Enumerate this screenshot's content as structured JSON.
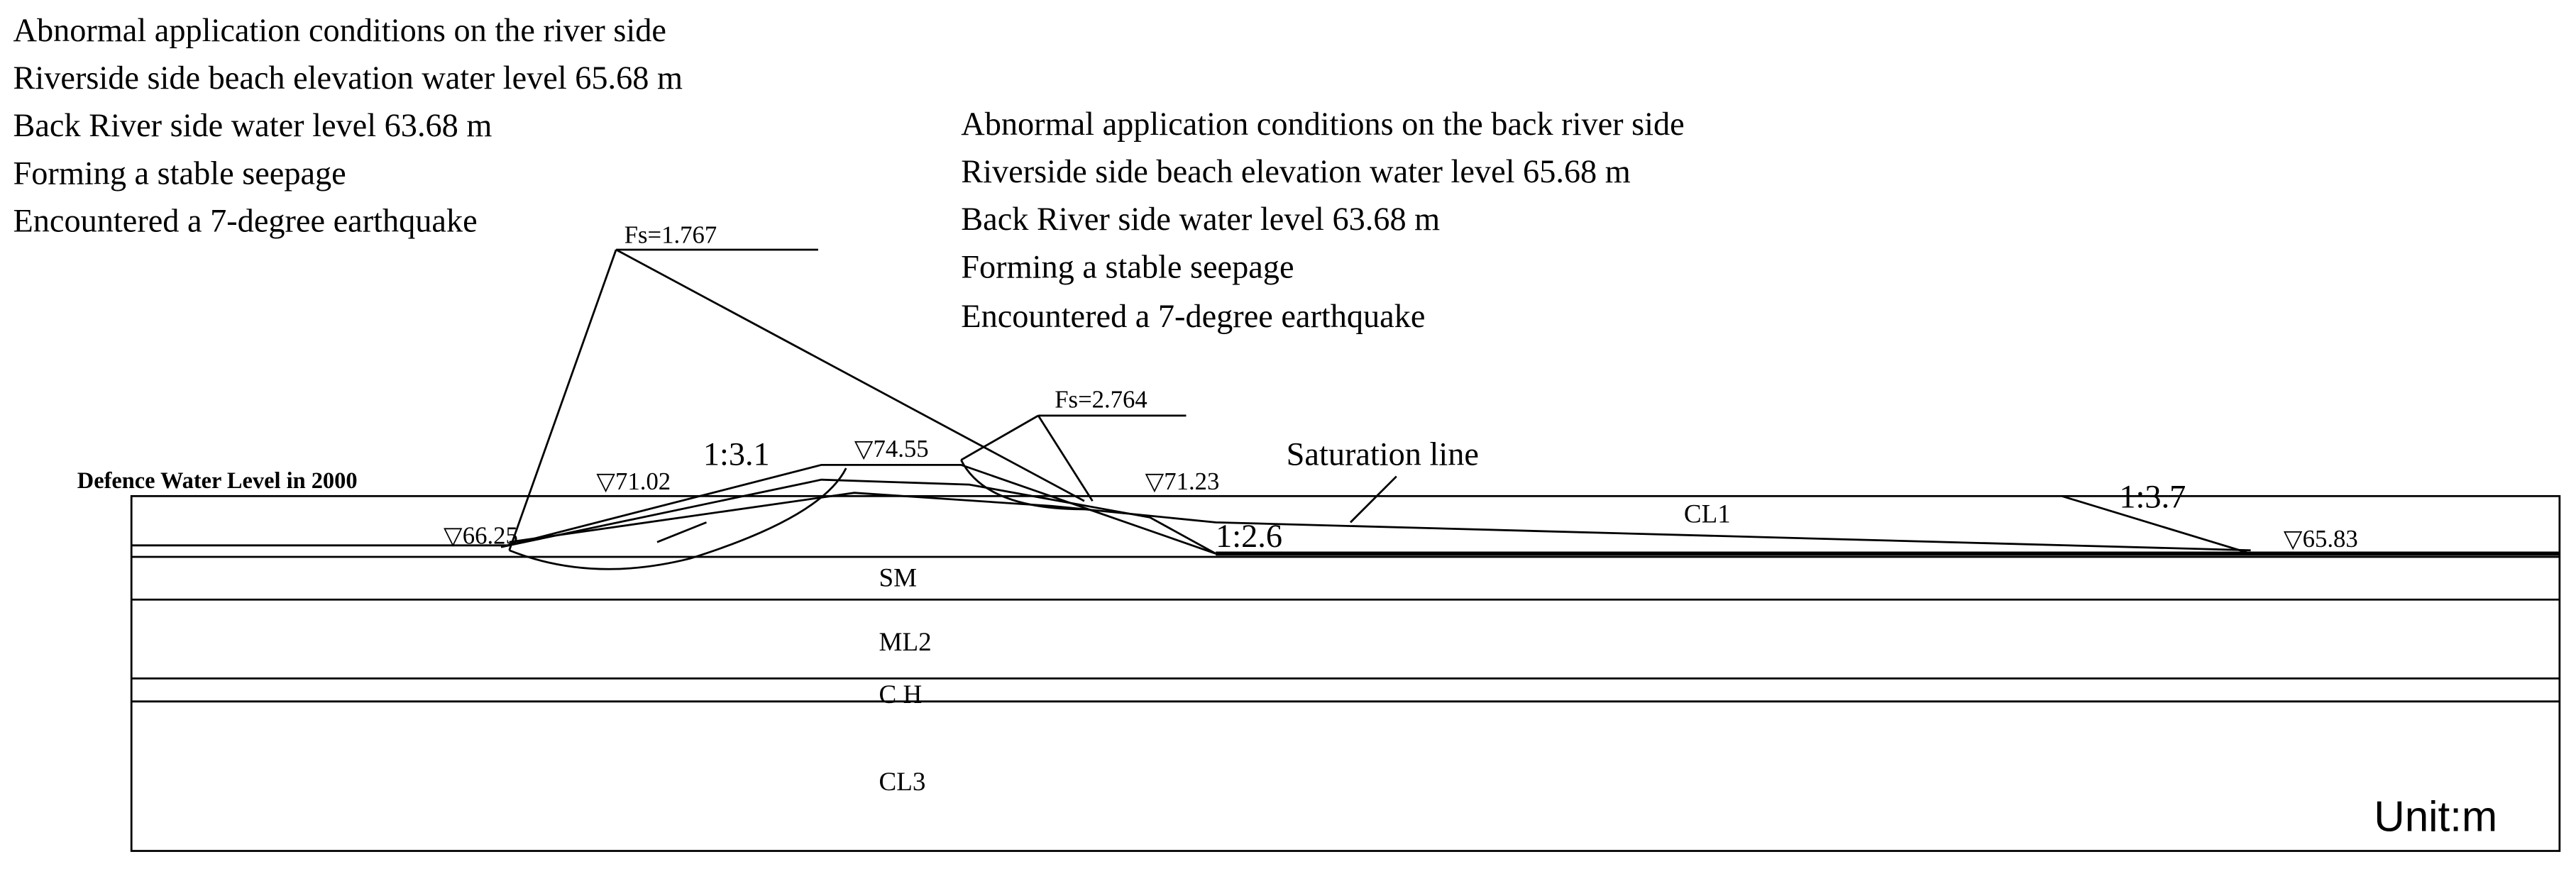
{
  "river_side": {
    "lines": [
      "Abnormal application conditions on the river side",
      "Riverside side beach elevation water level 65.68 m",
      "Back River side water level 63.68 m",
      "Forming a stable seepage",
      "Encountered a 7-degree earthquake"
    ]
  },
  "back_river_side": {
    "lines": [
      "Abnormal application conditions on the back river side",
      "Riverside side beach elevation water level 65.68 m",
      "Back River side water level 63.68 m",
      "Forming a stable seepage",
      "Encountered a 7-degree earthquake"
    ]
  },
  "safety_factors": [
    "Fs=1.767",
    "Fs=2.764"
  ],
  "elevations": [
    "▽71.02",
    "▽74.55",
    "▽71.23",
    "▽66.25",
    "▽65.83"
  ],
  "slopes": [
    "1:3.1",
    "1:2.6",
    "1:3.7"
  ],
  "layers": [
    "SM",
    "ML2",
    "C H",
    "CL3",
    "CL1"
  ],
  "labels": {
    "saturation_line": "Saturation line",
    "defence_level": "Defence Water Level in 2000",
    "unit": "Unit:m"
  }
}
